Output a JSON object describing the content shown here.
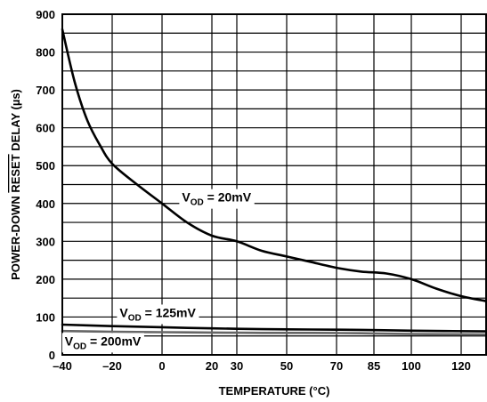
{
  "chart_data": {
    "type": "line",
    "title": "",
    "xlabel": "TEMPERATURE (°C)",
    "ylabel_parts": {
      "before": "POWER-DOWN ",
      "overline": "RESET",
      "after": " DELAY (µs)"
    },
    "xlim": [
      -40,
      130
    ],
    "ylim": [
      0,
      900
    ],
    "x_ticks": [
      -40,
      -20,
      0,
      20,
      30,
      50,
      70,
      85,
      100,
      120
    ],
    "x_tick_labels": [
      "–40",
      "–20",
      "0",
      "20",
      "30",
      "50",
      "70",
      "85",
      "100",
      "120"
    ],
    "y_ticks": [
      0,
      100,
      200,
      300,
      400,
      500,
      600,
      700,
      800,
      900
    ],
    "y_tick_labels": [
      "0",
      "100",
      "200",
      "300",
      "400",
      "500",
      "600",
      "700",
      "800",
      "900"
    ],
    "grid": true,
    "series": [
      {
        "name": "VOD = 20mV",
        "color": "#000000",
        "x": [
          -40,
          -35,
          -30,
          -25,
          -20,
          -10,
          0,
          10,
          20,
          30,
          40,
          50,
          60,
          70,
          80,
          90,
          100,
          110,
          120,
          130
        ],
        "y": [
          860,
          720,
          620,
          555,
          505,
          450,
          400,
          350,
          315,
          300,
          275,
          260,
          245,
          230,
          220,
          215,
          200,
          175,
          155,
          142
        ]
      },
      {
        "name": "VOD = 125mV",
        "color": "#000000",
        "x": [
          -40,
          -20,
          0,
          20,
          40,
          60,
          80,
          100,
          130
        ],
        "y": [
          80,
          76,
          73,
          70,
          68,
          67,
          66,
          64,
          62
        ]
      },
      {
        "name": "VOD = 200mV",
        "color": "#666666",
        "x": [
          -40,
          -20,
          0,
          20,
          40,
          60,
          80,
          100,
          130
        ],
        "y": [
          63,
          61,
          60,
          59,
          58,
          58,
          57,
          55,
          54
        ]
      }
    ],
    "annotations": [
      {
        "main": "V",
        "sub": "OD",
        "rest": " = 20mV",
        "anchor_x": 8,
        "anchor_y": 405
      },
      {
        "main": "V",
        "sub": "OD",
        "rest": " = 125mV",
        "anchor_x": -17,
        "anchor_y": 100
      },
      {
        "main": "V",
        "sub": "OD",
        "rest": " = 200mV",
        "anchor_x": -39,
        "anchor_y": 25
      }
    ]
  }
}
